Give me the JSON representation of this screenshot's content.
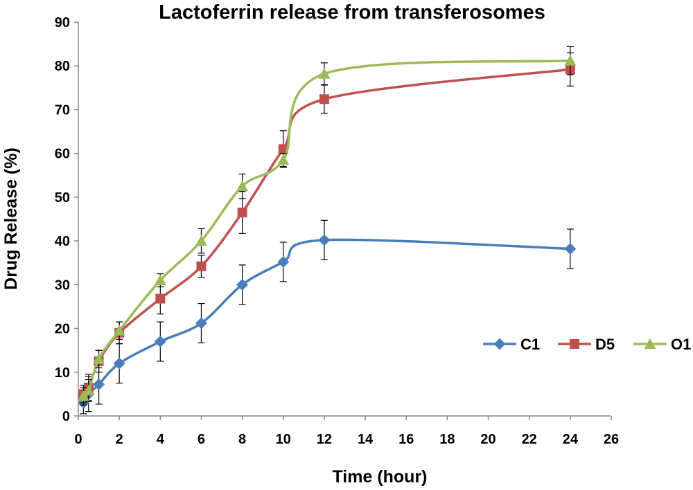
{
  "chart_data": {
    "type": "line",
    "title": "Lactoferrin release from transferosomes",
    "xlabel": "Time (hour)",
    "ylabel": "Drug Release (%)",
    "xlim": [
      0,
      26
    ],
    "ylim": [
      0,
      90
    ],
    "x_ticks": [
      "0",
      "2",
      "4",
      "6",
      "8",
      "10",
      "12",
      "14",
      "16",
      "18",
      "20",
      "22",
      "24",
      "26"
    ],
    "y_ticks": [
      "0",
      "10",
      "20",
      "30",
      "40",
      "50",
      "60",
      "70",
      "80",
      "90"
    ],
    "grid": false,
    "legend_position": "right",
    "x": [
      0.25,
      0.5,
      1,
      2,
      4,
      6,
      8,
      10,
      12,
      24
    ],
    "series": [
      {
        "name": "C1",
        "color": "#4a7ebb",
        "marker": "diamond",
        "values": [
          3.0,
          5.0,
          7.2,
          12.0,
          17.0,
          21.2,
          30.0,
          35.2,
          40.2,
          38.2
        ],
        "errors": [
          2.5,
          4.0,
          4.5,
          4.5,
          4.5,
          4.5,
          4.5,
          4.5,
          4.5,
          4.5
        ]
      },
      {
        "name": "D5",
        "color": "#c0504d",
        "marker": "square",
        "values": [
          5.0,
          6.5,
          12.5,
          19.0,
          26.8,
          34.2,
          46.5,
          61.0,
          72.4,
          79.2
        ],
        "errors": [
          2.0,
          3.0,
          2.5,
          2.5,
          3.5,
          2.5,
          4.8,
          4.2,
          3.2,
          3.8
        ]
      },
      {
        "name": "O1",
        "color": "#9bbb59",
        "marker": "triangle",
        "values": [
          4.5,
          5.8,
          13.0,
          19.5,
          31.0,
          40.0,
          52.5,
          58.5,
          78.2,
          81.2
        ],
        "errors": [
          2.0,
          2.5,
          2.0,
          2.0,
          1.5,
          2.8,
          2.8,
          1.5,
          2.5,
          3.2
        ]
      }
    ]
  }
}
